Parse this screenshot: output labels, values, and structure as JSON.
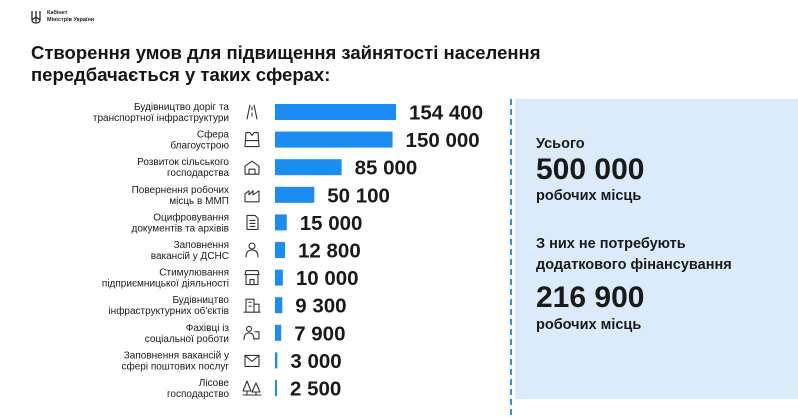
{
  "header": {
    "logo_line1": "Кабінет",
    "logo_line2": "Міністрів України",
    "title_line1": "Створення умов для підвищення зайнятості населення",
    "title_line2": "передбачається у таких сферах:"
  },
  "colors": {
    "bar": "#1a8cf2",
    "panel": "#dcebfb",
    "divider": "#2f8ef0",
    "text": "#1a1a1a"
  },
  "summary": {
    "total_label": "Усього",
    "total_value": "500 000",
    "total_unit": "робочих місць",
    "subset_label_line1": "З них не потребують",
    "subset_label_line2": "додаткового фінансування",
    "subset_value": "216 900",
    "subset_unit": "робочих місць"
  },
  "chart_data": {
    "type": "bar",
    "orientation": "horizontal",
    "categories": [
      [
        "Будівництво доріг та",
        "транспортної інфраструктури"
      ],
      [
        "Сфера",
        "благоустрою"
      ],
      [
        "Розвиток сільського",
        "господарства"
      ],
      [
        "Повернення робочих",
        "місць в ММП"
      ],
      [
        "Оцифровування",
        "документів та архівів"
      ],
      [
        "Заповнення",
        "вакансій у ДСНС"
      ],
      [
        "Стимулювання",
        "підприємницької діяльності"
      ],
      [
        "Будівництво",
        "інфраструктурних об'єктів"
      ],
      [
        "Фахівці із",
        "соціальної роботи"
      ],
      [
        "Заповнення вакансій у",
        "сфері поштових послуг"
      ],
      [
        "Лісове",
        "господарство"
      ]
    ],
    "icons": [
      "road-icon",
      "vest-icon",
      "farm-icon",
      "factory-icon",
      "document-icon",
      "rescuer-icon",
      "shop-icon",
      "building-icon",
      "social-worker-icon",
      "mail-icon",
      "forest-icon"
    ],
    "values": [
      154400,
      150000,
      85000,
      50100,
      15000,
      12800,
      10000,
      9300,
      7900,
      3000,
      2500
    ],
    "value_labels": [
      "154 400",
      "150 000",
      "85 000",
      "50 100",
      "15 000",
      "12 800",
      "10 000",
      "9 300",
      "7 900",
      "3 000",
      "2 500"
    ],
    "xlim": [
      0,
      154400
    ]
  }
}
